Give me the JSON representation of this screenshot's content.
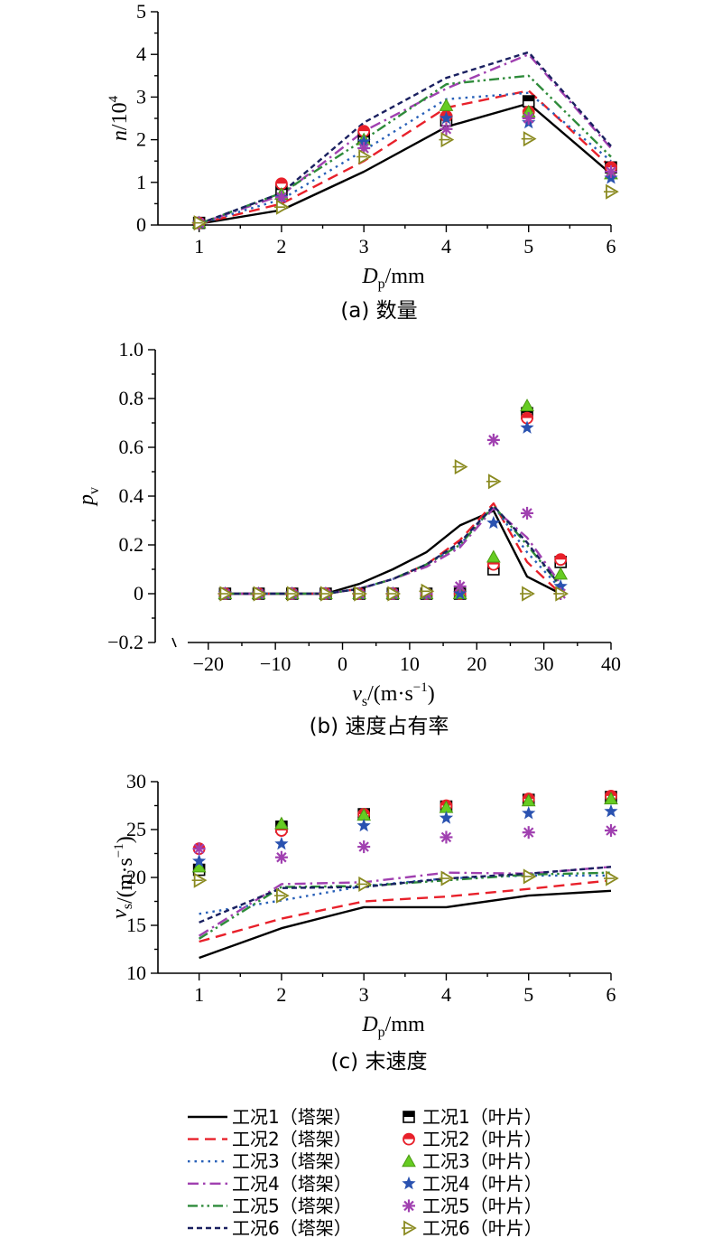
{
  "chart_data": [
    {
      "id": "a",
      "type": "line",
      "caption": "(a) 数量",
      "xlabel_main": "D",
      "xlabel_sub": "p",
      "xlabel_unit": "/mm",
      "ylabel_main": "n",
      "ylabel_unit": "/10",
      "ylabel_sup": "4",
      "xlim": [
        0.5,
        6
      ],
      "ylim": [
        0,
        5
      ],
      "xticks": [
        1,
        2,
        3,
        4,
        5,
        6
      ],
      "yticks": [
        0,
        1,
        2,
        3,
        4,
        5
      ],
      "x": [
        1,
        2,
        3,
        4,
        5,
        6
      ],
      "line_series": [
        {
          "name": "工况1（塔架）",
          "values": [
            0.03,
            0.35,
            1.25,
            2.3,
            2.85,
            1.2
          ]
        },
        {
          "name": "工况2（塔架）",
          "values": [
            0.03,
            0.5,
            1.5,
            2.75,
            3.15,
            1.35
          ]
        },
        {
          "name": "工况3（塔架）",
          "values": [
            0.03,
            0.6,
            1.75,
            2.95,
            3.1,
            1.5
          ]
        },
        {
          "name": "工况4（塔架）",
          "values": [
            0.03,
            0.7,
            2.2,
            3.2,
            4.0,
            1.8
          ]
        },
        {
          "name": "工况5（塔架）",
          "values": [
            0.03,
            0.75,
            2.0,
            3.3,
            3.5,
            1.6
          ]
        },
        {
          "name": "工况6（塔架）",
          "values": [
            0.03,
            0.75,
            2.4,
            3.45,
            4.05,
            1.85
          ]
        }
      ],
      "marker_series": [
        {
          "name": "工况1（叶片）",
          "values": [
            0.05,
            0.82,
            2.05,
            2.45,
            2.9,
            1.35
          ]
        },
        {
          "name": "工况2（叶片）",
          "values": [
            0.05,
            0.97,
            2.2,
            2.55,
            2.65,
            1.35
          ]
        },
        {
          "name": "工况3（叶片）",
          "values": [
            0.05,
            0.72,
            2.0,
            2.8,
            2.65,
            1.2
          ]
        },
        {
          "name": "工况4（叶片）",
          "values": [
            0.05,
            0.65,
            1.95,
            2.5,
            2.4,
            1.1
          ]
        },
        {
          "name": "工况5（叶片）",
          "values": [
            0.05,
            0.65,
            1.8,
            2.25,
            2.5,
            1.25
          ]
        },
        {
          "name": "工况6（叶片）",
          "values": [
            0.05,
            0.42,
            1.6,
            2.0,
            2.02,
            0.78
          ]
        }
      ]
    },
    {
      "id": "b",
      "type": "line",
      "caption": "(b) 速度占有率",
      "xlabel_main": "v",
      "xlabel_sub": "s",
      "xlabel_unit": "/(m·s",
      "xlabel_sup": "−1",
      "xlabel_close": ")",
      "ylabel_main": "p",
      "ylabel_sub": "v",
      "xlim": [
        -27.5,
        40
      ],
      "ylim": [
        -0.2,
        1.0
      ],
      "xticks": [
        -20,
        -10,
        0,
        10,
        20,
        30,
        40
      ],
      "xtick_labels": [
        "−20",
        "−10",
        "0",
        "10",
        "20",
        "30",
        "40"
      ],
      "yticks": [
        -0.2,
        0,
        0.2,
        0.4,
        0.6,
        0.8,
        1.0
      ],
      "ytick_labels": [
        "−0.2",
        "0",
        "0.2",
        "0.4",
        "0.6",
        "0.8",
        "1.0"
      ],
      "x": [
        -17.5,
        -12.5,
        -7.5,
        -2.5,
        2.5,
        7.5,
        12.5,
        17.5,
        22.5,
        27.5,
        32.5
      ],
      "line_series": [
        {
          "name": "工况1（塔架）",
          "values": [
            0,
            0,
            0,
            0,
            0.04,
            0.1,
            0.17,
            0.28,
            0.34,
            0.07,
            0
          ]
        },
        {
          "name": "工况2（塔架）",
          "values": [
            0,
            0,
            0,
            0,
            0.02,
            0.06,
            0.12,
            0.22,
            0.37,
            0.13,
            0
          ]
        },
        {
          "name": "工况3（塔架）",
          "values": [
            0,
            0,
            0,
            0,
            0.02,
            0.06,
            0.12,
            0.2,
            0.36,
            0.17,
            0.02
          ]
        },
        {
          "name": "工况4（塔架）",
          "values": [
            0,
            0,
            0,
            0,
            0.02,
            0.06,
            0.11,
            0.19,
            0.35,
            0.23,
            0.04
          ]
        },
        {
          "name": "工况5（塔架）",
          "values": [
            0,
            0,
            0,
            0,
            0.02,
            0.06,
            0.12,
            0.2,
            0.36,
            0.2,
            0.03
          ]
        },
        {
          "name": "工况6（塔架）",
          "values": [
            0,
            0,
            0,
            0,
            0.02,
            0.06,
            0.12,
            0.21,
            0.36,
            0.21,
            0.03
          ]
        }
      ],
      "marker_series": [
        {
          "name": "工况1（叶片）",
          "values": [
            0,
            0,
            0,
            0,
            0,
            0,
            0,
            0,
            0.1,
            0.74,
            0.13
          ]
        },
        {
          "name": "工况2（叶片）",
          "values": [
            0,
            0,
            0,
            0,
            0,
            0,
            0,
            0,
            0.12,
            0.72,
            0.14
          ]
        },
        {
          "name": "工况3（叶片）",
          "values": [
            0,
            0,
            0,
            0,
            0,
            0,
            0,
            0,
            0.15,
            0.77,
            0.08
          ]
        },
        {
          "name": "工况4（叶片）",
          "values": [
            0,
            0,
            0,
            0,
            0,
            0,
            0,
            0,
            0.29,
            0.68,
            0.03
          ]
        },
        {
          "name": "工况5（叶片）",
          "values": [
            0,
            0,
            0,
            0,
            0,
            0,
            0,
            0.03,
            0.63,
            0.33,
            0
          ]
        },
        {
          "name": "工况6（叶片）",
          "values": [
            0,
            0,
            0,
            0,
            0,
            0,
            0.01,
            0.52,
            0.46,
            0,
            0
          ]
        }
      ]
    },
    {
      "id": "c",
      "type": "line",
      "caption": "(c) 末速度",
      "xlabel_main": "D",
      "xlabel_sub": "p",
      "xlabel_unit": "/mm",
      "ylabel_main": "v",
      "ylabel_sub": "s",
      "ylabel_unit": "/(m·s",
      "ylabel_sup": "−1",
      "ylabel_close": ")",
      "xlim": [
        0.5,
        6
      ],
      "ylim": [
        10,
        30
      ],
      "xticks": [
        1,
        2,
        3,
        4,
        5,
        6
      ],
      "yticks": [
        10,
        15,
        20,
        25,
        30
      ],
      "x": [
        1,
        2,
        3,
        4,
        5,
        6
      ],
      "line_series": [
        {
          "name": "工况1（塔架）",
          "values": [
            11.6,
            14.7,
            16.9,
            16.9,
            18.1,
            18.6
          ]
        },
        {
          "name": "工况2（塔架）",
          "values": [
            13.3,
            15.7,
            17.5,
            18.0,
            18.8,
            19.7
          ]
        },
        {
          "name": "工况3（塔架）",
          "values": [
            16.2,
            17.6,
            19.1,
            19.9,
            20.2,
            20.2
          ]
        },
        {
          "name": "工况4（塔架）",
          "values": [
            13.9,
            19.3,
            19.5,
            20.5,
            20.4,
            21.1
          ]
        },
        {
          "name": "工况5（塔架）",
          "values": [
            13.6,
            19.0,
            19.1,
            19.7,
            20.3,
            20.5
          ]
        },
        {
          "name": "工况6（塔架）",
          "values": [
            15.3,
            18.9,
            19.0,
            19.9,
            20.4,
            21.1
          ]
        }
      ],
      "marker_series": [
        {
          "name": "工况1（叶片）",
          "values": [
            20.8,
            25.3,
            26.6,
            27.4,
            28.1,
            28.4
          ]
        },
        {
          "name": "工况2（叶片）",
          "values": [
            23.0,
            24.9,
            26.6,
            27.5,
            28.2,
            28.5
          ]
        },
        {
          "name": "工况3（叶片）",
          "values": [
            21.1,
            25.6,
            26.5,
            27.3,
            28.0,
            28.2
          ]
        },
        {
          "name": "工况4（叶片）",
          "values": [
            21.7,
            23.5,
            25.4,
            26.2,
            26.7,
            26.9
          ]
        },
        {
          "name": "工况5（叶片）",
          "values": [
            23.0,
            22.1,
            23.2,
            24.2,
            24.7,
            24.9
          ]
        },
        {
          "name": "工况6（叶片）",
          "values": [
            19.7,
            18.1,
            19.3,
            19.9,
            20.1,
            19.9
          ]
        }
      ]
    }
  ],
  "legend": {
    "lines": [
      {
        "label": "工况1（塔架）",
        "color": "#000000",
        "dash": "solid"
      },
      {
        "label": "工况2（塔架）",
        "color": "#e8202a",
        "dash": "dash"
      },
      {
        "label": "工况3（塔架）",
        "color": "#2860b8",
        "dash": "dot"
      },
      {
        "label": "工况4（塔架）",
        "color": "#a040b0",
        "dash": "dashdot"
      },
      {
        "label": "工况5（塔架）",
        "color": "#2e8b3a",
        "dash": "dashdotdot"
      },
      {
        "label": "工况6（塔架）",
        "color": "#1a2060",
        "dash": "shortdash"
      }
    ],
    "markers": [
      {
        "label": "工况1（叶片）",
        "color": "#000000",
        "marker": "half-square"
      },
      {
        "label": "工况2（叶片）",
        "color": "#e8202a",
        "marker": "half-circle"
      },
      {
        "label": "工况3（叶片）",
        "color": "#66cc22",
        "marker": "triangle"
      },
      {
        "label": "工况4（叶片）",
        "color": "#2a52b0",
        "marker": "star"
      },
      {
        "label": "工况5（叶片）",
        "color": "#a040b0",
        "marker": "asterisk"
      },
      {
        "label": "工况6（叶片）",
        "color": "#8a8a20",
        "marker": "right-triangle"
      }
    ]
  }
}
